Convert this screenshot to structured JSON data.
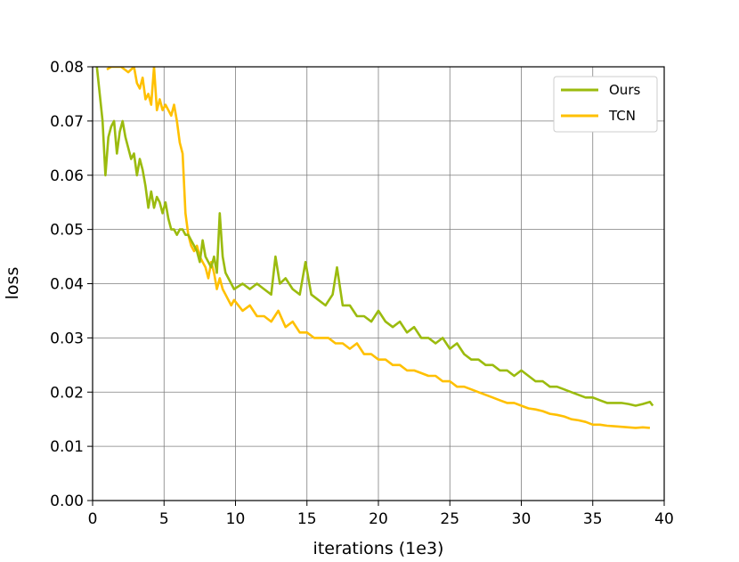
{
  "chart_data": {
    "type": "line",
    "xlabel": "iterations (1e3)",
    "ylabel": "loss",
    "xlim": [
      0,
      40
    ],
    "ylim": [
      0,
      0.08
    ],
    "xticks": [
      "0",
      "5",
      "10",
      "15",
      "20",
      "25",
      "30",
      "35",
      "40"
    ],
    "yticks": [
      "0.00",
      "0.01",
      "0.02",
      "0.03",
      "0.04",
      "0.05",
      "0.06",
      "0.07",
      "0.08"
    ],
    "grid": true,
    "legend_position": "top-right",
    "series": [
      {
        "name": "Ours",
        "color": "#9bbb0e",
        "points": [
          [
            0.3,
            0.08
          ],
          [
            0.5,
            0.075
          ],
          [
            0.7,
            0.07
          ],
          [
            0.9,
            0.06
          ],
          [
            1.1,
            0.067
          ],
          [
            1.3,
            0.069
          ],
          [
            1.5,
            0.07
          ],
          [
            1.7,
            0.064
          ],
          [
            1.9,
            0.068
          ],
          [
            2.1,
            0.07
          ],
          [
            2.3,
            0.067
          ],
          [
            2.5,
            0.065
          ],
          [
            2.7,
            0.063
          ],
          [
            2.9,
            0.064
          ],
          [
            3.1,
            0.06
          ],
          [
            3.3,
            0.063
          ],
          [
            3.5,
            0.061
          ],
          [
            3.7,
            0.058
          ],
          [
            3.9,
            0.054
          ],
          [
            4.1,
            0.057
          ],
          [
            4.3,
            0.054
          ],
          [
            4.5,
            0.056
          ],
          [
            4.7,
            0.055
          ],
          [
            4.9,
            0.053
          ],
          [
            5.1,
            0.055
          ],
          [
            5.3,
            0.052
          ],
          [
            5.5,
            0.05
          ],
          [
            5.7,
            0.05
          ],
          [
            5.9,
            0.049
          ],
          [
            6.1,
            0.05
          ],
          [
            6.3,
            0.05
          ],
          [
            6.5,
            0.049
          ],
          [
            6.7,
            0.049
          ],
          [
            6.9,
            0.048
          ],
          [
            7.1,
            0.047
          ],
          [
            7.3,
            0.046
          ],
          [
            7.5,
            0.044
          ],
          [
            7.7,
            0.048
          ],
          [
            7.9,
            0.045
          ],
          [
            8.1,
            0.044
          ],
          [
            8.3,
            0.043
          ],
          [
            8.5,
            0.045
          ],
          [
            8.7,
            0.042
          ],
          [
            8.9,
            0.053
          ],
          [
            9.1,
            0.045
          ],
          [
            9.3,
            0.042
          ],
          [
            9.5,
            0.041
          ],
          [
            9.7,
            0.04
          ],
          [
            9.9,
            0.039
          ],
          [
            10.5,
            0.04
          ],
          [
            11.0,
            0.039
          ],
          [
            11.5,
            0.04
          ],
          [
            12.0,
            0.039
          ],
          [
            12.5,
            0.038
          ],
          [
            12.8,
            0.045
          ],
          [
            13.1,
            0.04
          ],
          [
            13.5,
            0.041
          ],
          [
            14.0,
            0.039
          ],
          [
            14.5,
            0.038
          ],
          [
            14.9,
            0.044
          ],
          [
            15.3,
            0.038
          ],
          [
            15.8,
            0.037
          ],
          [
            16.3,
            0.036
          ],
          [
            16.8,
            0.038
          ],
          [
            17.1,
            0.043
          ],
          [
            17.5,
            0.036
          ],
          [
            18.0,
            0.036
          ],
          [
            18.5,
            0.034
          ],
          [
            19.0,
            0.034
          ],
          [
            19.5,
            0.033
          ],
          [
            20.0,
            0.035
          ],
          [
            20.5,
            0.033
          ],
          [
            21.0,
            0.032
          ],
          [
            21.5,
            0.033
          ],
          [
            22.0,
            0.031
          ],
          [
            22.5,
            0.032
          ],
          [
            23.0,
            0.03
          ],
          [
            23.5,
            0.03
          ],
          [
            24.0,
            0.029
          ],
          [
            24.5,
            0.03
          ],
          [
            25.0,
            0.028
          ],
          [
            25.5,
            0.029
          ],
          [
            26.0,
            0.027
          ],
          [
            26.5,
            0.026
          ],
          [
            27.0,
            0.026
          ],
          [
            27.5,
            0.025
          ],
          [
            28.0,
            0.025
          ],
          [
            28.5,
            0.024
          ],
          [
            29.0,
            0.024
          ],
          [
            29.5,
            0.023
          ],
          [
            30.0,
            0.024
          ],
          [
            30.5,
            0.023
          ],
          [
            31.0,
            0.022
          ],
          [
            31.5,
            0.022
          ],
          [
            32.0,
            0.021
          ],
          [
            32.5,
            0.021
          ],
          [
            33.0,
            0.0205
          ],
          [
            33.5,
            0.02
          ],
          [
            34.0,
            0.0195
          ],
          [
            34.5,
            0.019
          ],
          [
            35.0,
            0.019
          ],
          [
            35.5,
            0.0185
          ],
          [
            36.0,
            0.018
          ],
          [
            36.5,
            0.018
          ],
          [
            37.0,
            0.018
          ],
          [
            37.5,
            0.0178
          ],
          [
            38.0,
            0.0175
          ],
          [
            38.5,
            0.0178
          ],
          [
            39.0,
            0.0182
          ],
          [
            39.2,
            0.0175
          ]
        ]
      },
      {
        "name": "TCN",
        "color": "#ffc000",
        "points": [
          [
            1.0,
            0.0795
          ],
          [
            1.3,
            0.08
          ],
          [
            2.0,
            0.08
          ],
          [
            2.5,
            0.079
          ],
          [
            2.9,
            0.08
          ],
          [
            3.1,
            0.077
          ],
          [
            3.3,
            0.076
          ],
          [
            3.5,
            0.078
          ],
          [
            3.7,
            0.074
          ],
          [
            3.9,
            0.075
          ],
          [
            4.1,
            0.073
          ],
          [
            4.3,
            0.08
          ],
          [
            4.5,
            0.072
          ],
          [
            4.7,
            0.074
          ],
          [
            4.9,
            0.072
          ],
          [
            5.1,
            0.073
          ],
          [
            5.3,
            0.072
          ],
          [
            5.5,
            0.071
          ],
          [
            5.7,
            0.073
          ],
          [
            5.9,
            0.07
          ],
          [
            6.1,
            0.066
          ],
          [
            6.3,
            0.064
          ],
          [
            6.5,
            0.053
          ],
          [
            6.7,
            0.049
          ],
          [
            6.9,
            0.047
          ],
          [
            7.1,
            0.046
          ],
          [
            7.3,
            0.047
          ],
          [
            7.5,
            0.045
          ],
          [
            7.7,
            0.044
          ],
          [
            7.9,
            0.043
          ],
          [
            8.1,
            0.041
          ],
          [
            8.3,
            0.044
          ],
          [
            8.5,
            0.042
          ],
          [
            8.7,
            0.039
          ],
          [
            8.9,
            0.041
          ],
          [
            9.1,
            0.039
          ],
          [
            9.3,
            0.038
          ],
          [
            9.5,
            0.037
          ],
          [
            9.7,
            0.036
          ],
          [
            9.9,
            0.037
          ],
          [
            10.5,
            0.035
          ],
          [
            11.0,
            0.036
          ],
          [
            11.5,
            0.034
          ],
          [
            12.0,
            0.034
          ],
          [
            12.5,
            0.033
          ],
          [
            13.0,
            0.035
          ],
          [
            13.5,
            0.032
          ],
          [
            14.0,
            0.033
          ],
          [
            14.5,
            0.031
          ],
          [
            15.0,
            0.031
          ],
          [
            15.5,
            0.03
          ],
          [
            16.0,
            0.03
          ],
          [
            16.5,
            0.03
          ],
          [
            17.0,
            0.029
          ],
          [
            17.5,
            0.029
          ],
          [
            18.0,
            0.028
          ],
          [
            18.5,
            0.029
          ],
          [
            19.0,
            0.027
          ],
          [
            19.5,
            0.027
          ],
          [
            20.0,
            0.026
          ],
          [
            20.5,
            0.026
          ],
          [
            21.0,
            0.025
          ],
          [
            21.5,
            0.025
          ],
          [
            22.0,
            0.024
          ],
          [
            22.5,
            0.024
          ],
          [
            23.0,
            0.0235
          ],
          [
            23.5,
            0.023
          ],
          [
            24.0,
            0.023
          ],
          [
            24.5,
            0.022
          ],
          [
            25.0,
            0.022
          ],
          [
            25.5,
            0.021
          ],
          [
            26.0,
            0.021
          ],
          [
            26.5,
            0.0205
          ],
          [
            27.0,
            0.02
          ],
          [
            27.5,
            0.0195
          ],
          [
            28.0,
            0.019
          ],
          [
            28.5,
            0.0185
          ],
          [
            29.0,
            0.018
          ],
          [
            29.5,
            0.018
          ],
          [
            30.0,
            0.0175
          ],
          [
            30.5,
            0.017
          ],
          [
            31.0,
            0.0168
          ],
          [
            31.5,
            0.0165
          ],
          [
            32.0,
            0.016
          ],
          [
            32.5,
            0.0158
          ],
          [
            33.0,
            0.0155
          ],
          [
            33.5,
            0.015
          ],
          [
            34.0,
            0.0148
          ],
          [
            34.5,
            0.0145
          ],
          [
            35.0,
            0.014
          ],
          [
            35.5,
            0.014
          ],
          [
            36.0,
            0.0138
          ],
          [
            36.5,
            0.0137
          ],
          [
            37.0,
            0.0136
          ],
          [
            37.5,
            0.0135
          ],
          [
            38.0,
            0.0134
          ],
          [
            38.5,
            0.0135
          ],
          [
            39.0,
            0.0134
          ]
        ]
      }
    ]
  }
}
